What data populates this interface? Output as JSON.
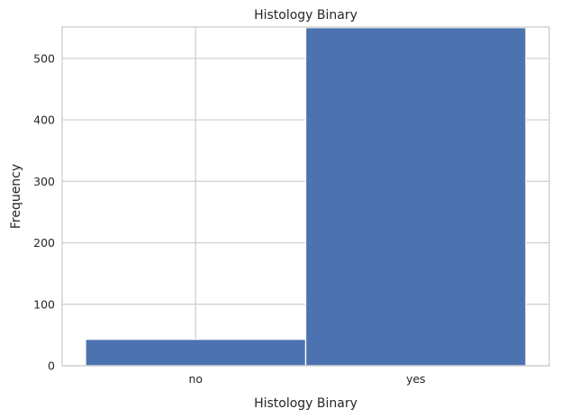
{
  "chart_data": {
    "type": "bar",
    "title": "Histology Binary",
    "xlabel": "Histology Binary",
    "ylabel": "Frequency",
    "categories": [
      "no",
      "yes"
    ],
    "values": [
      43,
      550
    ],
    "ylim": [
      0,
      551
    ],
    "yticks": [
      0,
      100,
      200,
      300,
      400,
      500
    ],
    "grid": true,
    "bar_color": "#4c72b0",
    "grid_color": "#cccccc",
    "background": "#ffffff"
  }
}
